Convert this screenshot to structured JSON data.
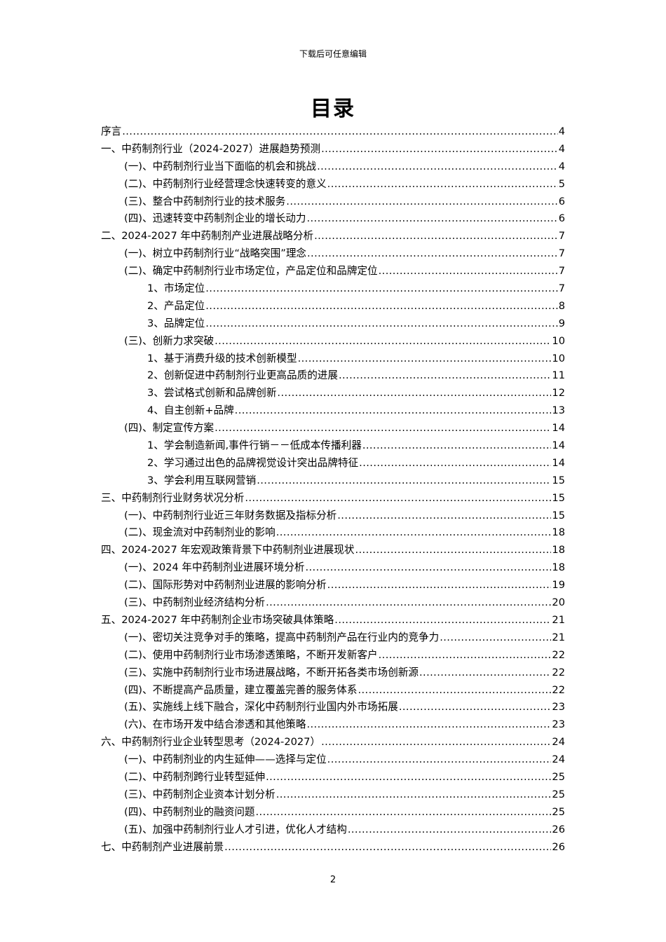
{
  "header": {
    "note": "下载后可任意编辑"
  },
  "title": "目录",
  "toc": [
    {
      "level": 0,
      "label": "序言",
      "page": "4"
    },
    {
      "level": 0,
      "label": "一、中药制剂行业（2024-2027）进展趋势预测",
      "page": "4"
    },
    {
      "level": 1,
      "label": "(一)、中药制剂行业当下面临的机会和挑战",
      "page": "4"
    },
    {
      "level": 1,
      "label": "(二)、中药制剂行业经营理念快速转变的意义",
      "page": "5"
    },
    {
      "level": 1,
      "label": "(三)、整合中药制剂行业的技术服务",
      "page": "6"
    },
    {
      "level": 1,
      "label": "(四)、迅速转变中药制剂企业的增长动力",
      "page": "6"
    },
    {
      "level": 0,
      "label": "二、2024-2027 年中药制剂产业进展战略分析",
      "page": "7"
    },
    {
      "level": 1,
      "label": "(一)、树立中药制剂行业“战略突围”理念",
      "page": "7"
    },
    {
      "level": 1,
      "label": "(二)、确定中药制剂行业市场定位，产品定位和品牌定位",
      "page": "7"
    },
    {
      "level": 2,
      "label": "1、市场定位",
      "page": "7"
    },
    {
      "level": 2,
      "label": "2、产品定位",
      "page": "8"
    },
    {
      "level": 2,
      "label": "3、品牌定位",
      "page": "9"
    },
    {
      "level": 1,
      "label": "(三)、创新力求突破",
      "page": "10"
    },
    {
      "level": 2,
      "label": "1、基于消费升级的技术创新模型",
      "page": "10"
    },
    {
      "level": 2,
      "label": "2、创新促进中药制剂行业更高品质的进展",
      "page": "11"
    },
    {
      "level": 2,
      "label": "3、尝试格式创新和品牌创新",
      "page": "12"
    },
    {
      "level": 2,
      "label": "4、自主创新+品牌",
      "page": "13"
    },
    {
      "level": 1,
      "label": "(四)、制定宣传方案",
      "page": "14"
    },
    {
      "level": 2,
      "label": "1、学会制造新闻,事件行销－－低成本传播利器",
      "page": "14"
    },
    {
      "level": 2,
      "label": "2、学习通过出色的品牌视觉设计突出品牌特征",
      "page": "14"
    },
    {
      "level": 2,
      "label": "3、学会利用互联网营销",
      "page": "15"
    },
    {
      "level": 0,
      "label": "三、中药制剂行业财务状况分析",
      "page": "15"
    },
    {
      "level": 1,
      "label": "(一)、中药制剂行业近三年财务数据及指标分析",
      "page": "15"
    },
    {
      "level": 1,
      "label": "(二)、现金流对中药制剂业的影响",
      "page": "18"
    },
    {
      "level": 0,
      "label": "四、2024-2027 年宏观政策背景下中药制剂业进展现状",
      "page": "18"
    },
    {
      "level": 1,
      "label": "(一)、2024 年中药制剂业进展环境分析",
      "page": "18"
    },
    {
      "level": 1,
      "label": "(二)、国际形势对中药制剂业进展的影响分析",
      "page": "19"
    },
    {
      "level": 1,
      "label": "(三)、中药制剂业经济结构分析",
      "page": "20"
    },
    {
      "level": 0,
      "label": "五、2024-2027 年中药制剂企业市场突破具体策略",
      "page": "21"
    },
    {
      "level": 1,
      "label": "(一)、密切关注竞争对手的策略，提高中药制剂产品在行业内的竞争力",
      "page": "21"
    },
    {
      "level": 1,
      "label": "(二)、使用中药制剂行业市场渗透策略，不断开发新客户",
      "page": "22"
    },
    {
      "level": 1,
      "label": "(三)、实施中药制剂行业市场进展战略，不断开拓各类市场创新源",
      "page": "22"
    },
    {
      "level": 1,
      "label": "(四)、不断提高产品质量，建立覆盖完善的服务体系",
      "page": "22"
    },
    {
      "level": 1,
      "label": "(五)、实施线上线下融合，深化中药制剂行业国内外市场拓展",
      "page": "23"
    },
    {
      "level": 1,
      "label": "(六)、在市场开发中结合渗透和其他策略",
      "page": "23"
    },
    {
      "level": 0,
      "label": "六、中药制剂行业企业转型思考（2024-2027）",
      "page": "24"
    },
    {
      "level": 1,
      "label": "(一)、中药制剂业的内生延伸——选择与定位",
      "page": "24"
    },
    {
      "level": 1,
      "label": "(二)、中药制剂跨行业转型延伸",
      "page": "25"
    },
    {
      "level": 1,
      "label": "(三)、中药制剂企业资本计划分析",
      "page": "25"
    },
    {
      "level": 1,
      "label": "(四)、中药制剂业的融资问题",
      "page": "25"
    },
    {
      "level": 1,
      "label": "(五)、加强中药制剂行业人才引进，优化人才结构",
      "page": "26"
    },
    {
      "level": 0,
      "label": "七、中药制剂产业进展前景",
      "page": "26"
    }
  ],
  "footer": {
    "page_number": "2"
  }
}
